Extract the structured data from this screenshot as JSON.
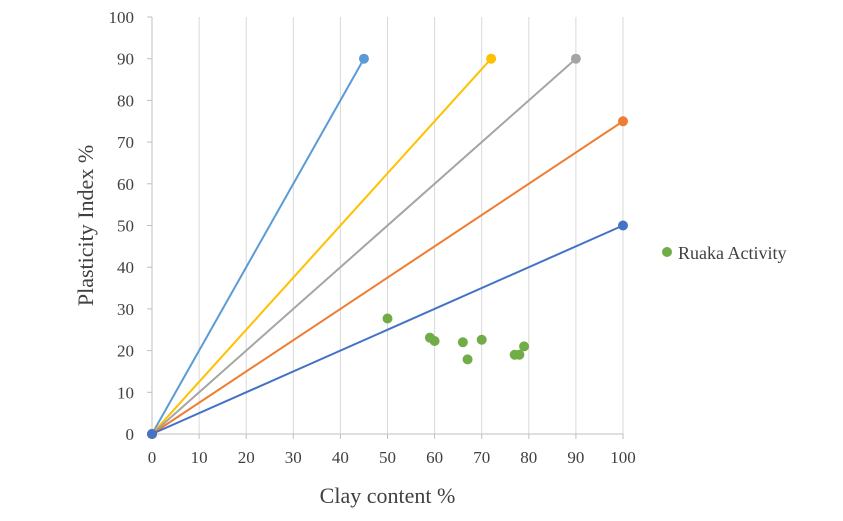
{
  "chart_data": {
    "type": "scatter",
    "title": "",
    "xlabel": "Clay content %",
    "ylabel": "Plasticity Index  %",
    "xlim": [
      0,
      100
    ],
    "ylim": [
      0,
      100
    ],
    "x_ticks": [
      "0",
      "10",
      "20",
      "30",
      "40",
      "50",
      "60",
      "70",
      "80",
      "90",
      "100"
    ],
    "y_ticks": [
      "0",
      "10",
      "20",
      "30",
      "40",
      "50",
      "60",
      "70",
      "80",
      "90",
      "100"
    ],
    "grid": {
      "vertical": true,
      "horizontal": false
    },
    "legend": {
      "placement": "right"
    },
    "reference_lines": [
      {
        "color": "#5b9bd5",
        "points": [
          [
            0,
            0
          ],
          [
            45,
            90
          ]
        ]
      },
      {
        "color": "#ffc000",
        "points": [
          [
            0,
            0
          ],
          [
            72,
            90
          ]
        ]
      },
      {
        "color": "#a5a5a5",
        "points": [
          [
            0,
            0
          ],
          [
            90,
            90
          ]
        ]
      },
      {
        "color": "#ed7d31",
        "points": [
          [
            0,
            0
          ],
          [
            100,
            75
          ]
        ]
      },
      {
        "color": "#4472c4",
        "points": [
          [
            0,
            0
          ],
          [
            100,
            50
          ]
        ]
      }
    ],
    "series": [
      {
        "name": "Ruaka Activity",
        "color": "#70ad47",
        "points": [
          [
            50,
            27.7
          ],
          [
            59,
            23.1
          ],
          [
            60,
            22.3
          ],
          [
            66,
            22.0
          ],
          [
            67,
            17.9
          ],
          [
            70,
            22.6
          ],
          [
            77,
            19.0
          ],
          [
            78,
            19.0
          ],
          [
            79,
            21.0
          ]
        ]
      }
    ]
  }
}
